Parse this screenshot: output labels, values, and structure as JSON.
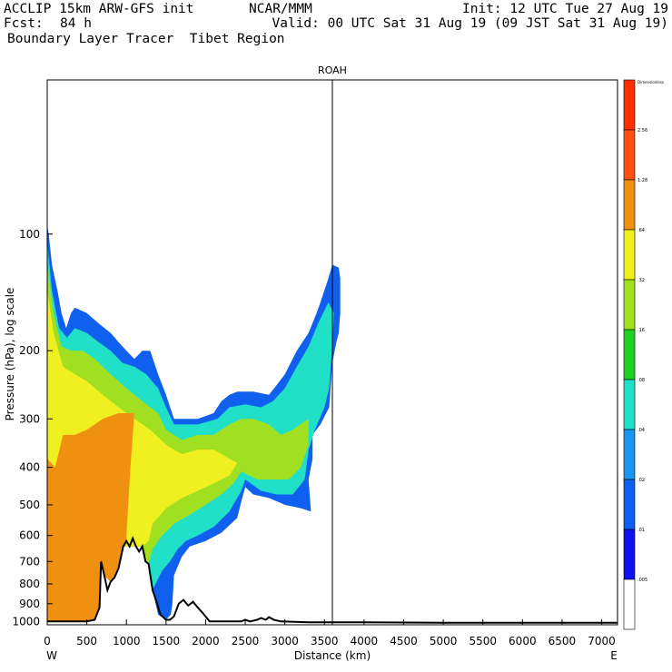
{
  "header": {
    "model": "ACCLIP 15km ARW-GFS init",
    "org": "NCAR/MMM",
    "init": "Init: 12 UTC Tue 27 Aug 19",
    "fcst_label": "Fcst:",
    "fcst_value": "84 h",
    "valid": "Valid: 00 UTC Sat 31 Aug 19 (09 JST Sat 31 Aug 19)",
    "field": "Boundary Layer Tracer  Tibet Region"
  },
  "chart_data": {
    "type": "area",
    "plot_title": "ROAH",
    "xlabel": "Distance (km)",
    "ylabel": "Pressure (hPa), log scale",
    "x_ticks": [
      0,
      500,
      1000,
      1500,
      2000,
      2500,
      3000,
      3500,
      4000,
      4500,
      5000,
      5500,
      6000,
      6500,
      7000
    ],
    "y_ticks": [
      100,
      200,
      300,
      400,
      500,
      600,
      700,
      800,
      900,
      1000
    ],
    "xlim": [
      0,
      7200
    ],
    "ylim": [
      1020,
      40
    ],
    "y_scale": "log",
    "left_end_label": "W",
    "right_end_label": "E",
    "marker_line_x_km": 3600,
    "colorbar": {
      "top_label": "Dimensionless",
      "levels": [
        ".005",
        ".01",
        ".02",
        ".04",
        ".08",
        ".16",
        ".32",
        ".64",
        "1.28",
        "2.56"
      ],
      "colors": [
        "#ffffff",
        "#1010ee",
        "#1060f0",
        "#1a96f0",
        "#20e0c8",
        "#20d020",
        "#a0e020",
        "#f0f020",
        "#f09010",
        "#ff5010",
        "#ff3000"
      ]
    },
    "terrain_profile_km_hPa": [
      [
        0,
        1000
      ],
      [
        100,
        1000
      ],
      [
        300,
        1000
      ],
      [
        500,
        1000
      ],
      [
        600,
        990
      ],
      [
        660,
        920
      ],
      [
        680,
        700
      ],
      [
        720,
        760
      ],
      [
        760,
        830
      ],
      [
        800,
        790
      ],
      [
        850,
        770
      ],
      [
        900,
        730
      ],
      [
        960,
        640
      ],
      [
        1000,
        620
      ],
      [
        1040,
        640
      ],
      [
        1080,
        610
      ],
      [
        1120,
        640
      ],
      [
        1160,
        660
      ],
      [
        1200,
        640
      ],
      [
        1240,
        700
      ],
      [
        1280,
        710
      ],
      [
        1330,
        830
      ],
      [
        1380,
        890
      ],
      [
        1430,
        960
      ],
      [
        1500,
        990
      ],
      [
        1550,
        990
      ],
      [
        1600,
        970
      ],
      [
        1660,
        900
      ],
      [
        1720,
        880
      ],
      [
        1780,
        910
      ],
      [
        1840,
        890
      ],
      [
        1900,
        920
      ],
      [
        1960,
        950
      ],
      [
        2050,
        1000
      ],
      [
        2200,
        1000
      ],
      [
        2450,
        1000
      ],
      [
        2500,
        990
      ],
      [
        2560,
        1000
      ],
      [
        2650,
        990
      ],
      [
        2700,
        980
      ],
      [
        2760,
        990
      ],
      [
        2800,
        975
      ],
      [
        2860,
        990
      ],
      [
        2950,
        1000
      ],
      [
        3300,
        1005
      ],
      [
        4000,
        1005
      ],
      [
        5000,
        1008
      ],
      [
        6000,
        1008
      ],
      [
        7200,
        1008
      ]
    ],
    "tracer_regions": [
      {
        "min_level": ".01",
        "polygon_km_hPa": [
          [
            0,
            1000
          ],
          [
            0,
            95
          ],
          [
            20,
            100
          ],
          [
            60,
            120
          ],
          [
            130,
            140
          ],
          [
            180,
            160
          ],
          [
            240,
            175
          ],
          [
            300,
            160
          ],
          [
            350,
            155
          ],
          [
            500,
            160
          ],
          [
            650,
            170
          ],
          [
            800,
            180
          ],
          [
            900,
            190
          ],
          [
            1000,
            200
          ],
          [
            1100,
            210
          ],
          [
            1200,
            200
          ],
          [
            1300,
            200
          ],
          [
            1400,
            230
          ],
          [
            1500,
            260
          ],
          [
            1600,
            300
          ],
          [
            1900,
            300
          ],
          [
            2100,
            290
          ],
          [
            2200,
            270
          ],
          [
            2300,
            260
          ],
          [
            2400,
            255
          ],
          [
            2600,
            255
          ],
          [
            2800,
            260
          ],
          [
            2900,
            245
          ],
          [
            3000,
            230
          ],
          [
            3150,
            200
          ],
          [
            3300,
            180
          ],
          [
            3400,
            160
          ],
          [
            3450,
            150
          ],
          [
            3550,
            130
          ],
          [
            3600,
            120
          ],
          [
            3680,
            122
          ],
          [
            3700,
            130
          ],
          [
            3700,
            160
          ],
          [
            3680,
            180
          ],
          [
            3650,
            190
          ],
          [
            3600,
            215
          ],
          [
            3560,
            280
          ],
          [
            3450,
            310
          ],
          [
            3350,
            330
          ],
          [
            3350,
            380
          ],
          [
            3300,
            430
          ],
          [
            3330,
            520
          ],
          [
            3200,
            510
          ],
          [
            3000,
            500
          ],
          [
            2800,
            480
          ],
          [
            2600,
            470
          ],
          [
            2500,
            450
          ],
          [
            2450,
            490
          ],
          [
            2400,
            540
          ],
          [
            2200,
            590
          ],
          [
            2000,
            620
          ],
          [
            1800,
            640
          ],
          [
            1700,
            680
          ],
          [
            1600,
            760
          ],
          [
            1580,
            900
          ],
          [
            1560,
            960
          ],
          [
            1500,
            990
          ],
          [
            1400,
            960
          ],
          [
            1330,
            830
          ],
          [
            1280,
            710
          ],
          [
            1240,
            700
          ],
          [
            1200,
            640
          ],
          [
            1120,
            640
          ],
          [
            1040,
            640
          ],
          [
            960,
            640
          ],
          [
            900,
            730
          ],
          [
            800,
            790
          ],
          [
            720,
            760
          ],
          [
            680,
            700
          ],
          [
            660,
            920
          ],
          [
            600,
            990
          ],
          [
            500,
            1000
          ]
        ]
      },
      {
        "min_level": ".04",
        "polygon_km_hPa": [
          [
            0,
            1000
          ],
          [
            0,
            105
          ],
          [
            60,
            140
          ],
          [
            150,
            175
          ],
          [
            250,
            185
          ],
          [
            350,
            175
          ],
          [
            500,
            180
          ],
          [
            650,
            190
          ],
          [
            800,
            200
          ],
          [
            950,
            215
          ],
          [
            1100,
            220
          ],
          [
            1250,
            230
          ],
          [
            1400,
            250
          ],
          [
            1500,
            280
          ],
          [
            1600,
            310
          ],
          [
            1900,
            310
          ],
          [
            2150,
            300
          ],
          [
            2300,
            280
          ],
          [
            2500,
            275
          ],
          [
            2700,
            280
          ],
          [
            2850,
            270
          ],
          [
            3000,
            250
          ],
          [
            3150,
            220
          ],
          [
            3300,
            195
          ],
          [
            3420,
            170
          ],
          [
            3550,
            150
          ],
          [
            3620,
            160
          ],
          [
            3600,
            190
          ],
          [
            3560,
            250
          ],
          [
            3500,
            280
          ],
          [
            3380,
            320
          ],
          [
            3300,
            360
          ],
          [
            3250,
            430
          ],
          [
            3100,
            470
          ],
          [
            2900,
            470
          ],
          [
            2700,
            460
          ],
          [
            2500,
            430
          ],
          [
            2450,
            460
          ],
          [
            2300,
            520
          ],
          [
            2100,
            570
          ],
          [
            1900,
            600
          ],
          [
            1750,
            620
          ],
          [
            1650,
            650
          ],
          [
            1550,
            700
          ],
          [
            1450,
            740
          ],
          [
            1330,
            830
          ],
          [
            1280,
            710
          ],
          [
            1240,
            700
          ],
          [
            1200,
            640
          ],
          [
            1120,
            640
          ],
          [
            1040,
            640
          ],
          [
            960,
            640
          ],
          [
            900,
            730
          ],
          [
            800,
            790
          ],
          [
            720,
            760
          ],
          [
            680,
            700
          ],
          [
            660,
            920
          ],
          [
            600,
            990
          ],
          [
            500,
            1000
          ]
        ]
      },
      {
        "min_level": ".16",
        "polygon_km_hPa": [
          [
            0,
            1000
          ],
          [
            0,
            120
          ],
          [
            80,
            160
          ],
          [
            180,
            195
          ],
          [
            300,
            200
          ],
          [
            450,
            200
          ],
          [
            600,
            210
          ],
          [
            800,
            230
          ],
          [
            1000,
            250
          ],
          [
            1200,
            270
          ],
          [
            1400,
            290
          ],
          [
            1500,
            320
          ],
          [
            1700,
            340
          ],
          [
            1900,
            330
          ],
          [
            2100,
            330
          ],
          [
            2300,
            310
          ],
          [
            2450,
            300
          ],
          [
            2600,
            300
          ],
          [
            2800,
            310
          ],
          [
            2950,
            330
          ],
          [
            3100,
            320
          ],
          [
            3300,
            300
          ],
          [
            3300,
            350
          ],
          [
            3200,
            400
          ],
          [
            3050,
            430
          ],
          [
            2850,
            430
          ],
          [
            2650,
            430
          ],
          [
            2450,
            410
          ],
          [
            2350,
            440
          ],
          [
            2200,
            470
          ],
          [
            2000,
            500
          ],
          [
            1800,
            530
          ],
          [
            1600,
            560
          ],
          [
            1450,
            600
          ],
          [
            1330,
            650
          ],
          [
            1280,
            710
          ],
          [
            1240,
            700
          ],
          [
            1200,
            640
          ],
          [
            1120,
            640
          ],
          [
            1040,
            640
          ],
          [
            960,
            640
          ],
          [
            900,
            730
          ],
          [
            800,
            790
          ],
          [
            720,
            760
          ],
          [
            680,
            700
          ],
          [
            660,
            920
          ],
          [
            600,
            990
          ],
          [
            500,
            1000
          ]
        ]
      },
      {
        "min_level": ".32",
        "polygon_km_hPa": [
          [
            0,
            1000
          ],
          [
            0,
            140
          ],
          [
            80,
            180
          ],
          [
            200,
            220
          ],
          [
            350,
            230
          ],
          [
            500,
            240
          ],
          [
            700,
            260
          ],
          [
            900,
            280
          ],
          [
            1100,
            300
          ],
          [
            1300,
            320
          ],
          [
            1500,
            350
          ],
          [
            1700,
            370
          ],
          [
            1900,
            360
          ],
          [
            2100,
            360
          ],
          [
            2300,
            380
          ],
          [
            2400,
            390
          ],
          [
            2300,
            420
          ],
          [
            2100,
            440
          ],
          [
            1900,
            460
          ],
          [
            1700,
            480
          ],
          [
            1500,
            510
          ],
          [
            1330,
            560
          ],
          [
            1280,
            620
          ],
          [
            1200,
            640
          ],
          [
            1120,
            640
          ],
          [
            1040,
            640
          ],
          [
            960,
            640
          ],
          [
            900,
            730
          ],
          [
            800,
            790
          ],
          [
            720,
            760
          ],
          [
            680,
            700
          ],
          [
            660,
            920
          ],
          [
            600,
            990
          ],
          [
            500,
            1000
          ]
        ]
      },
      {
        "min_level": ".64",
        "polygon_km_hPa": [
          [
            0,
            1000
          ],
          [
            0,
            380
          ],
          [
            100,
            400
          ],
          [
            200,
            330
          ],
          [
            350,
            330
          ],
          [
            500,
            320
          ],
          [
            700,
            300
          ],
          [
            900,
            290
          ],
          [
            1100,
            290
          ],
          [
            1050,
            400
          ],
          [
            1000,
            600
          ],
          [
            1000,
            620
          ],
          [
            960,
            640
          ],
          [
            900,
            730
          ],
          [
            800,
            790
          ],
          [
            720,
            760
          ],
          [
            680,
            700
          ],
          [
            660,
            920
          ],
          [
            600,
            990
          ],
          [
            500,
            1000
          ]
        ]
      }
    ]
  }
}
